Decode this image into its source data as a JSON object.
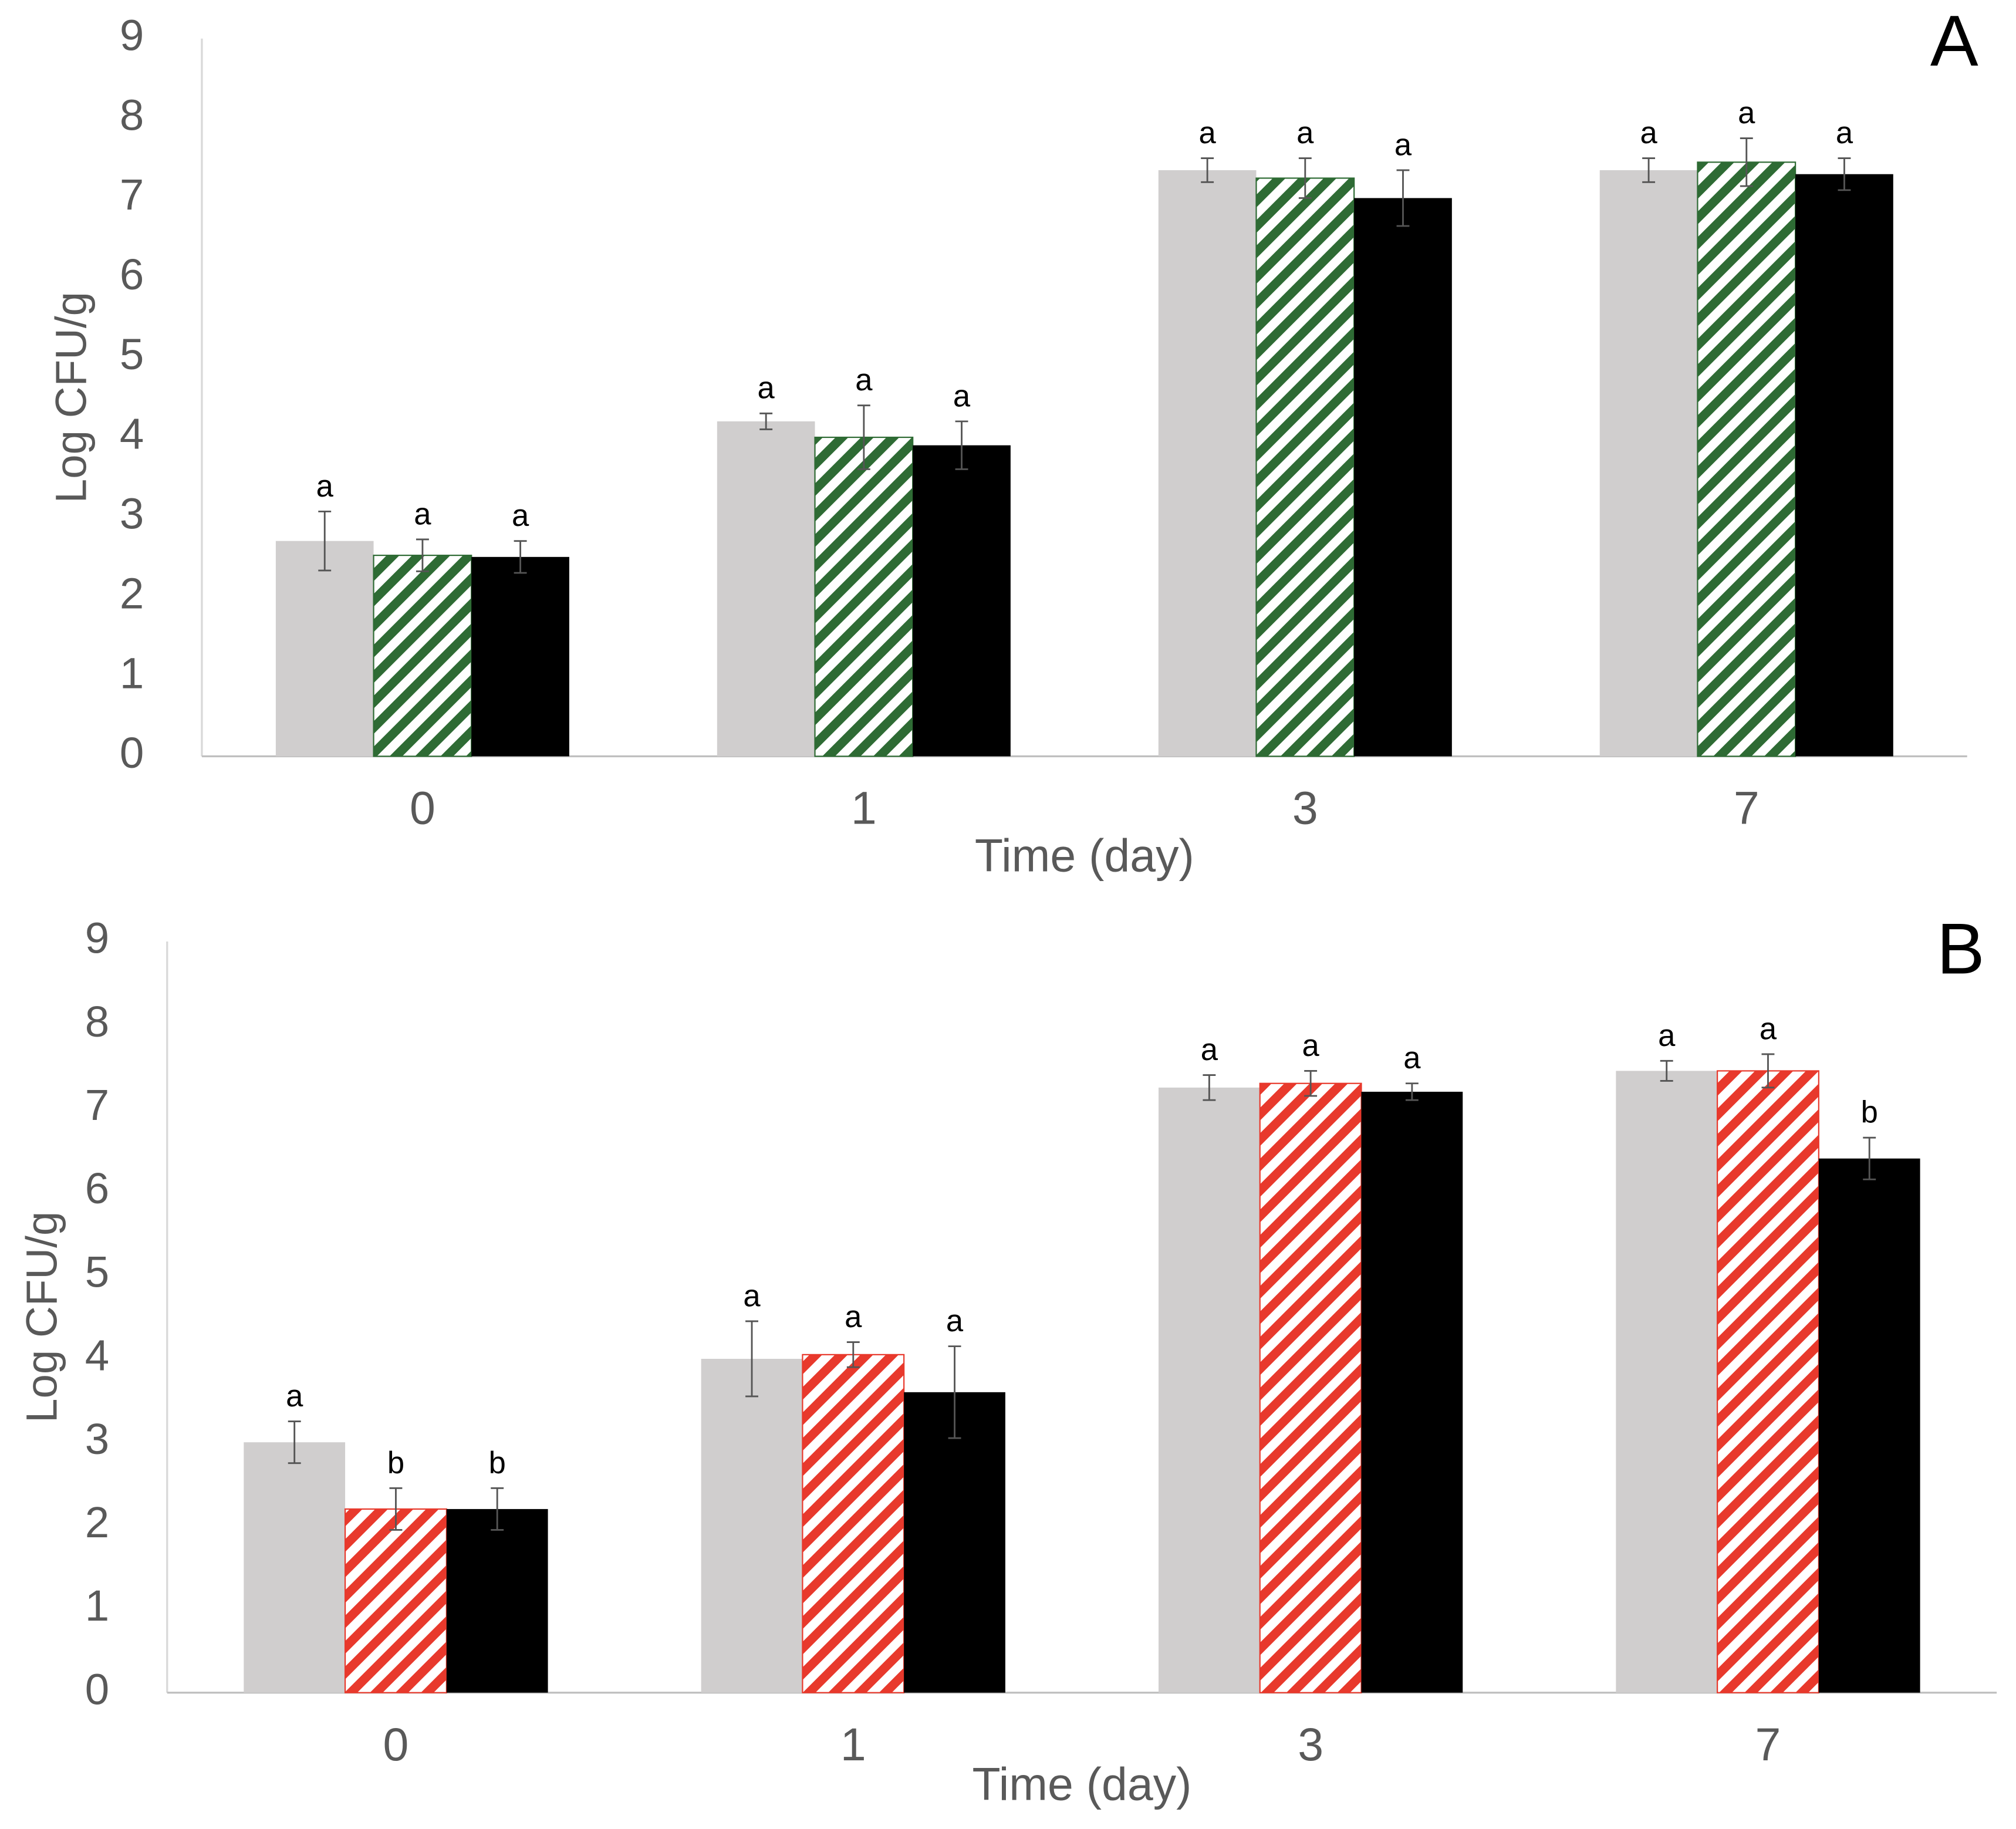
{
  "chart_data": [
    {
      "type": "bar",
      "title": "A",
      "xlabel": "Time (day)",
      "ylabel": "Log CFU/g",
      "categories": [
        "0",
        "1",
        "3",
        "7"
      ],
      "ylim": [
        0,
        9
      ],
      "yticks": [
        0,
        1,
        2,
        3,
        4,
        5,
        6,
        7,
        8,
        9
      ],
      "series": [
        {
          "color": "#d0cece",
          "hatch": false,
          "values": [
            2.7,
            4.2,
            7.35,
            7.35
          ],
          "errors": [
            0.37,
            0.1,
            0.15,
            0.15
          ],
          "labels": [
            "a",
            "a",
            "a",
            "a"
          ]
        },
        {
          "color": "#2e6b34",
          "hatch": true,
          "values": [
            2.52,
            4.0,
            7.25,
            7.45
          ],
          "errors": [
            0.2,
            0.4,
            0.25,
            0.3
          ],
          "labels": [
            "a",
            "a",
            "a",
            "a"
          ]
        },
        {
          "color": "#000000",
          "hatch": false,
          "values": [
            2.5,
            3.9,
            7.0,
            7.3
          ],
          "errors": [
            0.2,
            0.3,
            0.35,
            0.2
          ],
          "labels": [
            "a",
            "a",
            "a",
            "a"
          ]
        }
      ]
    },
    {
      "type": "bar",
      "title": "B",
      "xlabel": "Time (day)",
      "ylabel": "Log CFU/g",
      "categories": [
        "0",
        "1",
        "3",
        "7"
      ],
      "ylim": [
        0,
        9
      ],
      "yticks": [
        0,
        1,
        2,
        3,
        4,
        5,
        6,
        7,
        8,
        9
      ],
      "series": [
        {
          "color": "#d0cece",
          "hatch": false,
          "values": [
            3.0,
            4.0,
            7.25,
            7.45
          ],
          "errors": [
            0.25,
            0.45,
            0.15,
            0.12
          ],
          "labels": [
            "a",
            "a",
            "a",
            "a"
          ]
        },
        {
          "color": "#e8392c",
          "hatch": true,
          "values": [
            2.2,
            4.05,
            7.3,
            7.45
          ],
          "errors": [
            0.25,
            0.15,
            0.15,
            0.2
          ],
          "labels": [
            "b",
            "a",
            "a",
            "a"
          ]
        },
        {
          "color": "#000000",
          "hatch": false,
          "values": [
            2.2,
            3.6,
            7.2,
            6.4
          ],
          "errors": [
            0.25,
            0.55,
            0.1,
            0.25
          ],
          "labels": [
            "b",
            "a",
            "a",
            "b"
          ]
        }
      ]
    }
  ]
}
